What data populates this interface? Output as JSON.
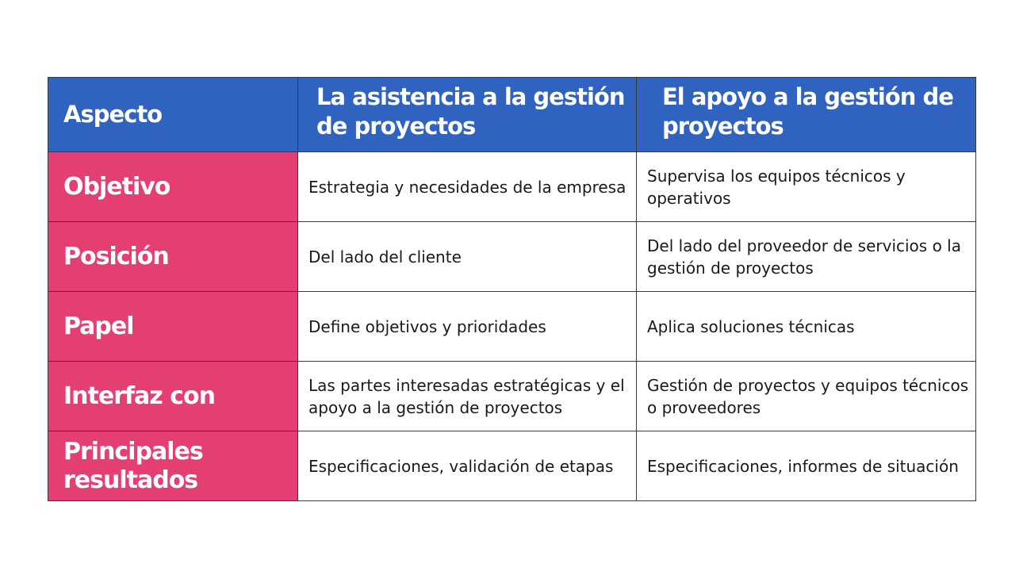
{
  "table": {
    "headers": [
      "Aspecto",
      "La asistencia a la gestión de proyectos",
      "El apoyo a la gestión de proyectos"
    ],
    "rows": [
      {
        "aspect": "Objetivo",
        "assistance": "Estrategia y necesidades de la empresa",
        "support": "Supervisa los equipos técnicos y operativos"
      },
      {
        "aspect": "Posición",
        "assistance": "Del lado del cliente",
        "support": "Del lado del proveedor de servicios o la gestión de proyectos"
      },
      {
        "aspect": "Papel",
        "assistance": "Define objetivos y prioridades",
        "support": "Aplica soluciones técnicas"
      },
      {
        "aspect": "Interfaz con",
        "assistance": "Las partes interesadas estratégicas y el apoyo a la gestión de proyectos",
        "support": "Gestión de proyectos y equipos técnicos o proveedores"
      },
      {
        "aspect": "Principales resultados",
        "assistance": "Especificaciones, validación de etapas",
        "support": "Especificaciones, informes de situación"
      }
    ]
  },
  "colors": {
    "header_bg": "#2f63bf",
    "label_bg": "#e43f72",
    "text": "#1a1a1a"
  }
}
